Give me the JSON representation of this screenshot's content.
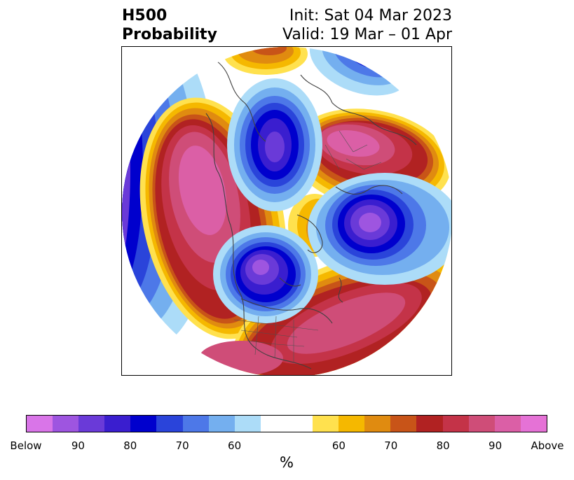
{
  "title": {
    "left_line1": "H500",
    "left_line2": "Probability",
    "right_line1": "Init: Sat 04 Mar 2023",
    "right_line2": "Valid: 19 Mar – 01 Apr"
  },
  "colorbar": {
    "unit": "%",
    "colors": [
      "#d975e8",
      "#9e55e0",
      "#6a3ad8",
      "#3a1ecf",
      "#0000cd",
      "#2a44da",
      "#4d78e8",
      "#74afef",
      "#acdcf8",
      "#ffffff",
      "#ffffff",
      "#ffe14e",
      "#f5b800",
      "#e08b10",
      "#c85418",
      "#b12222",
      "#c43348",
      "#cf4d78",
      "#db5fa6",
      "#e572d6"
    ],
    "tick_labels": [
      "Below",
      "90",
      "80",
      "70",
      "60",
      "60",
      "70",
      "80",
      "90",
      "Above"
    ]
  },
  "map": {
    "projection": "north-polar-stereographic",
    "features": [
      "coastlines",
      "country-borders",
      "state-borders"
    ]
  }
}
